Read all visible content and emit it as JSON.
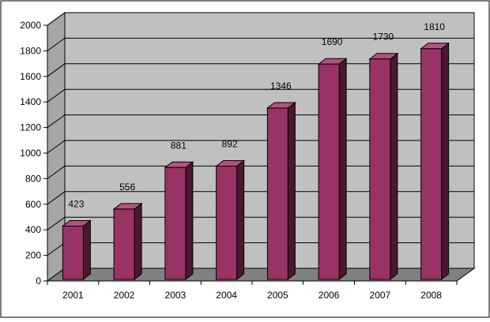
{
  "chart_data": {
    "type": "bar",
    "style": "3d-column",
    "categories": [
      "2001",
      "2002",
      "2003",
      "2004",
      "2005",
      "2006",
      "2007",
      "2008"
    ],
    "values": [
      423,
      556,
      881,
      892,
      1346,
      1690,
      1730,
      1810
    ],
    "value_labels": [
      "423",
      "556",
      "881",
      "892",
      "1346",
      "1690",
      "1730",
      "1810"
    ],
    "ylim": [
      0,
      2000
    ],
    "yticks": [
      "0",
      "200",
      "400",
      "600",
      "800",
      "1000",
      "1200",
      "1400",
      "1600",
      "1800",
      "2000"
    ],
    "grid": true,
    "legend": "none",
    "colors": {
      "bar_front": "#993366",
      "bar_side": "#4a1830",
      "bar_top": "#b2527f",
      "wall": "#c0c0c0",
      "floor": "#808080",
      "side_wall": "#a6a6a6",
      "gridline": "#000000"
    }
  }
}
